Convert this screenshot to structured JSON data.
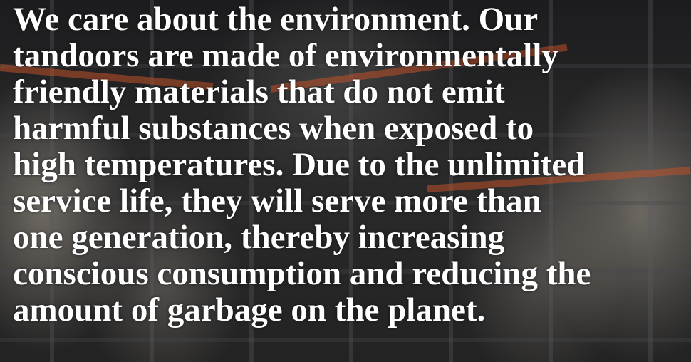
{
  "paragraph": {
    "lines": [
      "We care about the environment. Our",
      "tandoors are made of environmentally",
      "friendly materials that do not emit",
      "harmful substances when exposed to",
      "high temperatures. Due to the unlimited",
      "service life, they will serve more than",
      "one generation, thereby increasing",
      "conscious consumption and reducing the",
      "amount of garbage on the planet."
    ]
  }
}
